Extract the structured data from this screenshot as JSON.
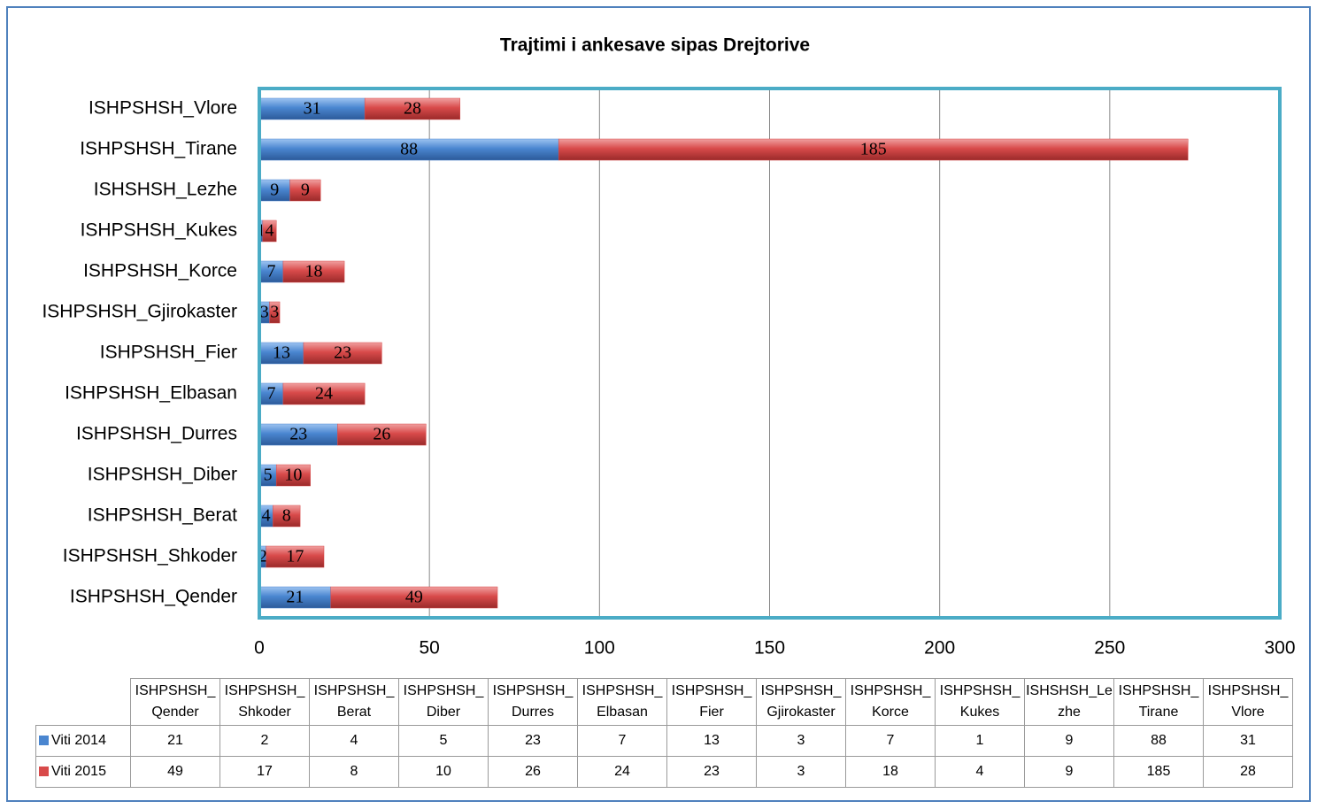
{
  "chart_data": {
    "type": "bar",
    "stacked": true,
    "orientation": "horizontal",
    "title": "Trajtimi i ankesave sipas Drejtorive",
    "categories": [
      "ISHPSHSH_Qender",
      "ISHPSHSH_Shkoder",
      "ISHPSHSH_Berat",
      "ISHPSHSH_Diber",
      "ISHPSHSH_Durres",
      "ISHPSHSH_Elbasan",
      "ISHPSHSH_Fier",
      "ISHPSHSH_Gjirokaster",
      "ISHPSHSH_Korce",
      "ISHPSHSH_Kukes",
      "ISHSHSH_Lezhe",
      "ISHPSHSH_Tirane",
      "ISHPSHSH_Vlore"
    ],
    "series": [
      {
        "name": "Viti 2014",
        "color": "#4a86d0",
        "values": [
          21,
          2,
          4,
          5,
          23,
          7,
          13,
          3,
          7,
          1,
          9,
          88,
          31
        ]
      },
      {
        "name": "Viti 2015",
        "color": "#d84a4a",
        "values": [
          49,
          17,
          8,
          10,
          26,
          24,
          23,
          3,
          18,
          4,
          9,
          185,
          28
        ]
      }
    ],
    "xlim": [
      0,
      300
    ],
    "xticks": [
      0,
      50,
      100,
      150,
      200,
      250,
      300
    ],
    "grid": true,
    "data_table": true
  }
}
